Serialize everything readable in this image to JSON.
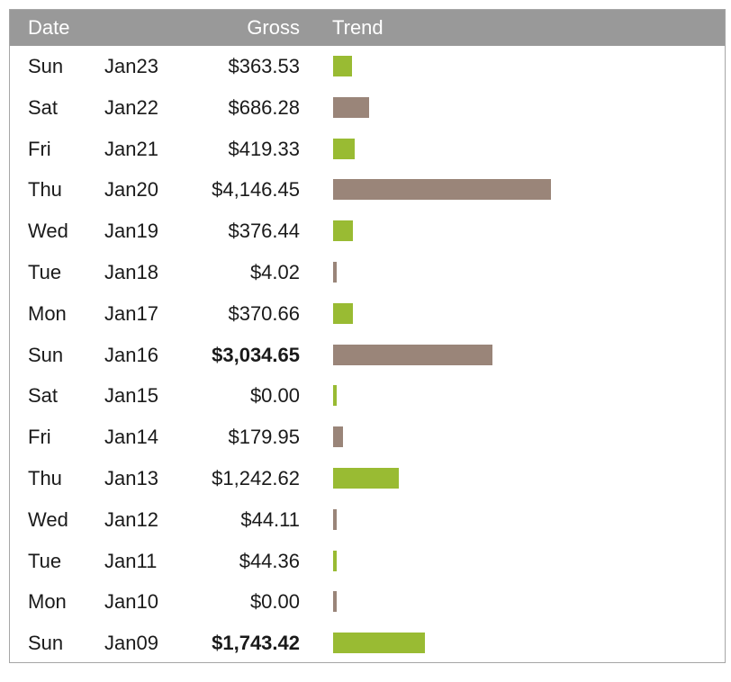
{
  "colors": {
    "header_bg": "#999999",
    "header_text": "#ffffff",
    "bar_green": "#99bb33",
    "bar_brown": "#9a8579",
    "border": "#a6a6a6"
  },
  "header": {
    "date": "Date",
    "gross": "Gross",
    "trend": "Trend"
  },
  "chart_data": {
    "type": "table",
    "columns": [
      "Date",
      "Gross",
      "Trend"
    ],
    "max_value": 4146.45,
    "rows": [
      {
        "day": "Sun",
        "date": "Jan23",
        "gross": "$363.53",
        "value": 363.53,
        "bold": false,
        "color": "green"
      },
      {
        "day": "Sat",
        "date": "Jan22",
        "gross": "$686.28",
        "value": 686.28,
        "bold": false,
        "color": "brown"
      },
      {
        "day": "Fri",
        "date": "Jan21",
        "gross": "$419.33",
        "value": 419.33,
        "bold": false,
        "color": "green"
      },
      {
        "day": "Thu",
        "date": "Jan20",
        "gross": "$4,146.45",
        "value": 4146.45,
        "bold": false,
        "color": "brown"
      },
      {
        "day": "Wed",
        "date": "Jan19",
        "gross": "$376.44",
        "value": 376.44,
        "bold": false,
        "color": "green"
      },
      {
        "day": "Tue",
        "date": "Jan18",
        "gross": "$4.02",
        "value": 4.02,
        "bold": false,
        "color": "brown"
      },
      {
        "day": "Mon",
        "date": "Jan17",
        "gross": "$370.66",
        "value": 370.66,
        "bold": false,
        "color": "green"
      },
      {
        "day": "Sun",
        "date": "Jan16",
        "gross": "$3,034.65",
        "value": 3034.65,
        "bold": true,
        "color": "brown"
      },
      {
        "day": "Sat",
        "date": "Jan15",
        "gross": "$0.00",
        "value": 0.0,
        "bold": false,
        "color": "green"
      },
      {
        "day": "Fri",
        "date": "Jan14",
        "gross": "$179.95",
        "value": 179.95,
        "bold": false,
        "color": "brown"
      },
      {
        "day": "Thu",
        "date": "Jan13",
        "gross": "$1,242.62",
        "value": 1242.62,
        "bold": false,
        "color": "green"
      },
      {
        "day": "Wed",
        "date": "Jan12",
        "gross": "$44.11",
        "value": 44.11,
        "bold": false,
        "color": "brown"
      },
      {
        "day": "Tue",
        "date": "Jan11",
        "gross": "$44.36",
        "value": 44.36,
        "bold": false,
        "color": "green"
      },
      {
        "day": "Mon",
        "date": "Jan10",
        "gross": "$0.00",
        "value": 0.0,
        "bold": false,
        "color": "brown"
      },
      {
        "day": "Sun",
        "date": "Jan09",
        "gross": "$1,743.42",
        "value": 1743.42,
        "bold": true,
        "color": "green"
      }
    ]
  }
}
